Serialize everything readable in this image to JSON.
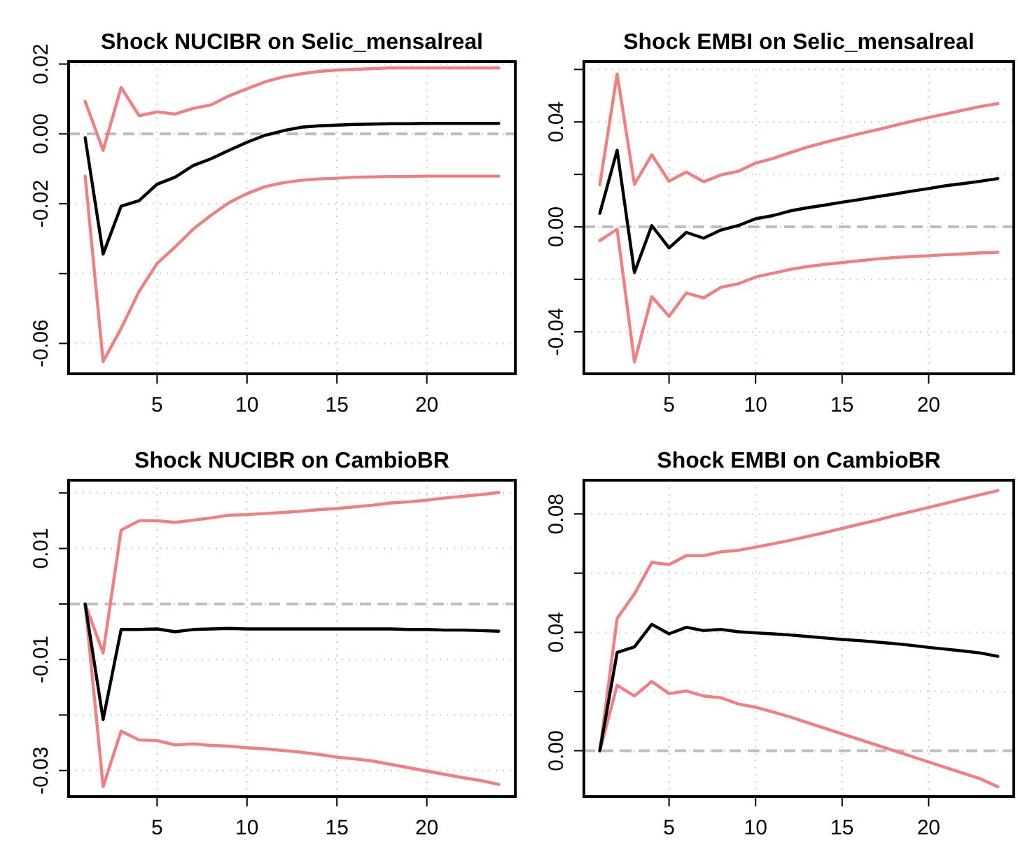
{
  "chart_data": [
    {
      "type": "line",
      "title": "Shock NUCIBR on Selic_mensalreal",
      "x": [
        1,
        2,
        3,
        4,
        5,
        6,
        7,
        8,
        9,
        10,
        11,
        12,
        13,
        14,
        15,
        16,
        17,
        18,
        19,
        20,
        21,
        22,
        23,
        24
      ],
      "xlim": [
        0.08,
        24.92
      ],
      "xticks": [
        5,
        10,
        15,
        20
      ],
      "ylim": [
        -0.0687,
        0.0207
      ],
      "yticks": [
        0.02,
        {
          "value": 0,
          "label": "0.00"
        },
        -0.02,
        {
          "value": -0.04,
          "label": null
        },
        -0.06
      ],
      "grid": true,
      "ref_lines": [
        {
          "axis": "y",
          "value": 0,
          "color": "#bebebe",
          "line_style": "dashed"
        }
      ],
      "series": [
        {
          "color": "#f08080",
          "values": [
            0.0093,
            -0.0047,
            0.0133,
            0.0052,
            0.0063,
            0.0057,
            0.0073,
            0.0083,
            0.0109,
            0.0129,
            0.0149,
            0.0163,
            0.0172,
            0.0179,
            0.0183,
            0.0185,
            0.0187,
            0.0189,
            0.0189,
            0.0189,
            0.0189,
            0.0189,
            0.0189,
            0.0189
          ]
        },
        {
          "color": "#f08080",
          "values": [
            -0.0121,
            -0.0652,
            -0.0557,
            -0.0451,
            -0.0371,
            -0.0324,
            -0.0273,
            -0.0233,
            -0.0197,
            -0.0171,
            -0.0151,
            -0.014,
            -0.0133,
            -0.0129,
            -0.0127,
            -0.0124,
            -0.0123,
            -0.0122,
            -0.0122,
            -0.0121,
            -0.0121,
            -0.0121,
            -0.0121,
            -0.0121
          ]
        },
        {
          "color": "#000000",
          "values": [
            -0.0011,
            -0.0344,
            -0.0207,
            -0.0191,
            -0.0144,
            -0.0124,
            -0.0091,
            -0.0071,
            -0.0047,
            -0.0024,
            -0.0004,
            0.0009,
            0.0019,
            0.0023,
            0.0025,
            0.0027,
            0.0028,
            0.0029,
            0.0029,
            0.003,
            0.003,
            0.003,
            0.003,
            0.003
          ]
        }
      ]
    },
    {
      "type": "line",
      "title": "Shock EMBI on Selic_mensalreal",
      "x": [
        1,
        2,
        3,
        4,
        5,
        6,
        7,
        8,
        9,
        10,
        11,
        12,
        13,
        14,
        15,
        16,
        17,
        18,
        19,
        20,
        21,
        22,
        23,
        24
      ],
      "xlim": [
        0.08,
        24.92
      ],
      "xticks": [
        5,
        10,
        15,
        20
      ],
      "ylim": [
        -0.056,
        0.063
      ],
      "yticks": [
        {
          "value": 0.06,
          "label": null
        },
        0.04,
        {
          "value": 0.02,
          "label": null
        },
        {
          "value": 0,
          "label": "0.00"
        },
        {
          "value": -0.02,
          "label": null
        },
        -0.04
      ],
      "grid": true,
      "ref_lines": [
        {
          "axis": "y",
          "value": 0,
          "color": "#bebebe",
          "line_style": "dashed"
        }
      ],
      "series": [
        {
          "color": "#f08080",
          "values": [
            0.016,
            0.0583,
            0.0162,
            0.0275,
            0.0174,
            0.0209,
            0.0172,
            0.0198,
            0.0212,
            0.0243,
            0.0261,
            0.0283,
            0.0304,
            0.0322,
            0.0339,
            0.0355,
            0.037,
            0.0386,
            0.0402,
            0.0417,
            0.0431,
            0.0445,
            0.0459,
            0.047
          ]
        },
        {
          "color": "#f08080",
          "values": [
            -0.0052,
            -0.0009,
            -0.0515,
            -0.0266,
            -0.0341,
            -0.0252,
            -0.0271,
            -0.023,
            -0.0217,
            -0.0191,
            -0.0177,
            -0.0162,
            -0.0151,
            -0.0143,
            -0.0136,
            -0.0129,
            -0.0122,
            -0.0117,
            -0.0113,
            -0.011,
            -0.0106,
            -0.0103,
            -0.0099,
            -0.0097
          ]
        },
        {
          "color": "#000000",
          "values": [
            0.0052,
            0.0292,
            -0.0174,
            0.0005,
            -0.008,
            -0.0021,
            -0.0043,
            -0.0012,
            0.0005,
            0.0031,
            0.0043,
            0.0061,
            0.0073,
            0.0083,
            0.0094,
            0.0104,
            0.0115,
            0.0125,
            0.0136,
            0.0146,
            0.0157,
            0.0165,
            0.0174,
            0.0184
          ]
        }
      ]
    },
    {
      "type": "line",
      "title": "Shock NUCIBR on CambioBR",
      "x": [
        1,
        2,
        3,
        4,
        5,
        6,
        7,
        8,
        9,
        10,
        11,
        12,
        13,
        14,
        15,
        16,
        17,
        18,
        19,
        20,
        21,
        22,
        23,
        24
      ],
      "xlim": [
        0.08,
        24.92
      ],
      "xticks": [
        5,
        10,
        15,
        20
      ],
      "ylim": [
        -0.0347,
        0.0223
      ],
      "yticks": [
        {
          "value": 0.02,
          "label": null
        },
        0.01,
        {
          "value": 0,
          "label": null
        },
        -0.01,
        {
          "value": -0.02,
          "label": null
        },
        -0.03
      ],
      "grid": true,
      "ref_lines": [
        {
          "axis": "y",
          "value": 0,
          "color": "#bebebe",
          "line_style": "dashed"
        }
      ],
      "series": [
        {
          "color": "#f08080",
          "values": [
            0,
            -0.0088,
            0.0133,
            0.015,
            0.015,
            0.0147,
            0.0151,
            0.0155,
            0.016,
            0.0161,
            0.0163,
            0.0165,
            0.0167,
            0.017,
            0.0172,
            0.0175,
            0.0178,
            0.0182,
            0.0184,
            0.0187,
            0.0191,
            0.0194,
            0.0197,
            0.0201
          ]
        },
        {
          "color": "#f08080",
          "values": [
            0,
            -0.0329,
            -0.0229,
            -0.0245,
            -0.0246,
            -0.0254,
            -0.0252,
            -0.0255,
            -0.0256,
            -0.0259,
            -0.0261,
            -0.0264,
            -0.0267,
            -0.0271,
            -0.0276,
            -0.0279,
            -0.0283,
            -0.0289,
            -0.0295,
            -0.0301,
            -0.0307,
            -0.0313,
            -0.0318,
            -0.0325
          ]
        },
        {
          "color": "#000000",
          "values": [
            0,
            -0.0208,
            -0.0046,
            -0.0046,
            -0.0045,
            -0.005,
            -0.0046,
            -0.0045,
            -0.0044,
            -0.0045,
            -0.0045,
            -0.0045,
            -0.0045,
            -0.0045,
            -0.0045,
            -0.0045,
            -0.0045,
            -0.0045,
            -0.0046,
            -0.0046,
            -0.0047,
            -0.0047,
            -0.0048,
            -0.0049
          ]
        }
      ]
    },
    {
      "type": "line",
      "title": "Shock EMBI on CambioBR",
      "x": [
        1,
        2,
        3,
        4,
        5,
        6,
        7,
        8,
        9,
        10,
        11,
        12,
        13,
        14,
        15,
        16,
        17,
        18,
        19,
        20,
        21,
        22,
        23,
        24
      ],
      "xlim": [
        0.08,
        24.92
      ],
      "xticks": [
        5,
        10,
        15,
        20
      ],
      "ylim": [
        -0.0155,
        0.0914
      ],
      "yticks": [
        0.08,
        {
          "value": 0.06,
          "label": null
        },
        0.04,
        {
          "value": 0.02,
          "label": null
        },
        {
          "value": 0,
          "label": "0.00"
        }
      ],
      "grid": true,
      "ref_lines": [
        {
          "axis": "y",
          "value": 0,
          "color": "#bebebe",
          "line_style": "dashed"
        }
      ],
      "series": [
        {
          "color": "#f08080",
          "values": [
            0,
            0.0447,
            0.053,
            0.0636,
            0.0629,
            0.0659,
            0.0659,
            0.0672,
            0.0677,
            0.0688,
            0.0699,
            0.0711,
            0.0724,
            0.0737,
            0.0751,
            0.0765,
            0.0779,
            0.0794,
            0.0808,
            0.0822,
            0.0836,
            0.0851,
            0.0865,
            0.0879
          ]
        },
        {
          "color": "#f08080",
          "values": [
            0,
            0.0221,
            0.0185,
            0.0234,
            0.0193,
            0.0202,
            0.0185,
            0.0179,
            0.0158,
            0.0147,
            0.0131,
            0.0114,
            0.0095,
            0.0076,
            0.0057,
            0.0038,
            0.0019,
            0,
            -0.0019,
            -0.0038,
            -0.0057,
            -0.0076,
            -0.0095,
            -0.0122
          ]
        },
        {
          "color": "#000000",
          "values": [
            0,
            0.0332,
            0.0351,
            0.0427,
            0.0395,
            0.0417,
            0.0406,
            0.041,
            0.0402,
            0.0398,
            0.0395,
            0.0391,
            0.0386,
            0.0381,
            0.0376,
            0.0372,
            0.0367,
            0.0362,
            0.0356,
            0.0349,
            0.0343,
            0.0337,
            0.033,
            0.0319
          ]
        }
      ]
    }
  ]
}
